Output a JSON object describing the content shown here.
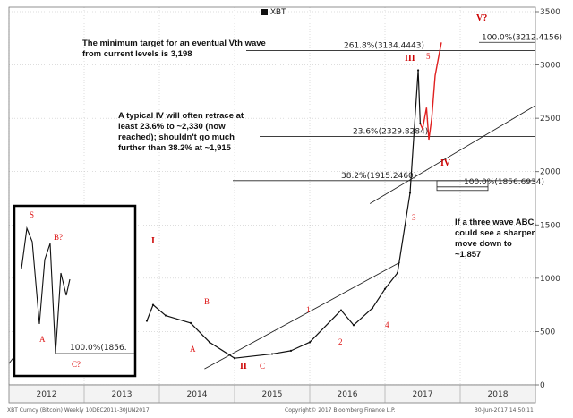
{
  "chart_data": {
    "type": "line",
    "title": "XBT",
    "ylim": [
      0,
      3500
    ],
    "y_ticks": [
      0,
      500,
      1000,
      1500,
      2000,
      2500,
      3000,
      3500
    ],
    "x_ticks": [
      "2012",
      "2013",
      "2014",
      "2015",
      "2016",
      "2017",
      "2018"
    ],
    "series": [
      {
        "name": "XBT",
        "x": [
          "2013-11",
          "2013-12",
          "2014-02",
          "2014-06",
          "2014-09",
          "2015-01",
          "2015-07",
          "2015-10",
          "2016-01",
          "2016-06",
          "2016-08",
          "2016-11",
          "2017-01",
          "2017-03",
          "2017-05",
          "2017-06-10",
          "2017-06-20"
        ],
        "values": [
          600,
          750,
          650,
          580,
          400,
          250,
          290,
          320,
          400,
          700,
          560,
          720,
          900,
          1050,
          1800,
          2950,
          2450
        ]
      }
    ],
    "projection": {
      "x": [
        "2017-06-20",
        "2017-07",
        "2017-07-20",
        "2017-08",
        "2017-08-15",
        "2017-09",
        "2017-10"
      ],
      "values": [
        2450,
        2400,
        2600,
        2300,
        2500,
        2900,
        3212
      ]
    },
    "fibonacci_levels": [
      {
        "label": "261.8%(3134.4443)",
        "value": 3134.4443
      },
      {
        "label": "23.6%(2329.8284)",
        "value": 2329.8284
      },
      {
        "label": "38.2%(1915.2460)",
        "value": 1915.246
      },
      {
        "label": "100.0%(1856.6934)",
        "value": 1856.6934
      },
      {
        "label": "100.0%(3212.4156)",
        "value": 3212.4156
      }
    ],
    "wave_labels": [
      "I",
      "II",
      "III",
      "IV",
      "V?",
      "A",
      "B",
      "C",
      "1",
      "2",
      "3",
      "4",
      "5"
    ],
    "annotations": [
      "The minimum target  for  an eventual Vth wave from current levels is 3,198",
      "A typical IV will often retrace at least 23.6% to ~2,330 (now reached); shouldn't go much further  than  38.2% at ~1,915",
      "If  a three wave ABC, could see a sharper move down  to ~1,857"
    ],
    "inset": {
      "labels": [
        "S",
        "B?",
        "A",
        "C?"
      ],
      "level_label": "100.0%(1856."
    },
    "footer": {
      "left": "XBT Curncy (Bitcoin)  Weekly 10DEC2011-30JUN2017",
      "center": "Copyright© 2017 Bloomberg Finance L.P.",
      "right": "30-Jun-2017 14:50:11"
    }
  },
  "colors": {
    "price": "#111111",
    "wave_label": "#d11111",
    "projection": "#e02020",
    "grid": "#bbbbbb"
  }
}
